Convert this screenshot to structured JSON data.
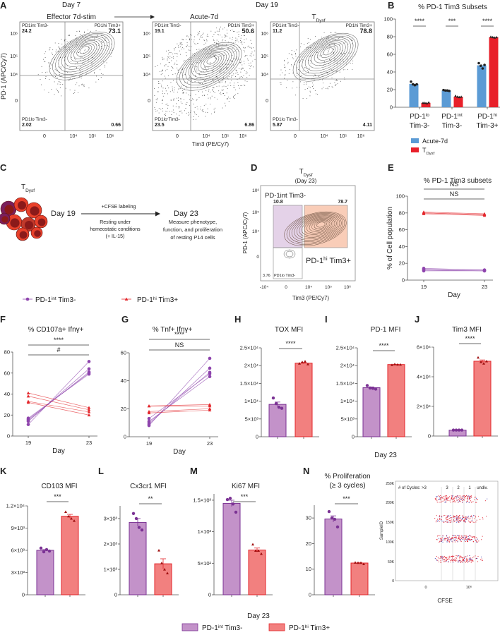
{
  "colors": {
    "acute": "#5b9bd5",
    "tdysf": "#e8202a",
    "int_fill": "#c392c9",
    "int_stroke": "#7b3294",
    "hi_fill": "#f2807f",
    "hi_stroke": "#e3262b",
    "int_gate": "#e4d2e8",
    "hi_gate": "#f9cdb8",
    "sig_purple": "#8e44ad",
    "sig_red": "#e8202a"
  },
  "panel_a": {
    "letter": "A",
    "day7": "Day 7",
    "day19": "Day 19",
    "effector_label": "Effector 7d-stim",
    "acute_label": "Acute-7d",
    "tdysf_label": "T{_Dysf}",
    "x_axis_label": "Tim3 (PE/Cy7)",
    "y_axis_label": "PD-1 (APC/Cy7)",
    "x_ticks": [
      "0",
      "10⁴",
      "10⁵",
      "10⁶"
    ],
    "y_ticks": [
      "10⁶",
      "10⁵",
      "10⁴",
      "0"
    ],
    "plots": [
      {
        "tl_label": "PD1int Tim3-",
        "tl": "24.2",
        "tr_label": "PD1hi Tim3+",
        "tr": "73.1",
        "bl_label": "PD1lo Tim3-",
        "bl": "2.02",
        "br": "0.66"
      },
      {
        "tl_label": "PD1int Tim3-",
        "tl": "19.1",
        "tr_label": "PD1hi Tim3+",
        "tr": "50.6",
        "bl_label": "PD1lo Tim3-",
        "bl": "23.5",
        "br": "6.86"
      },
      {
        "tl_label": "PD1int Tim3-",
        "tl": "11.2",
        "tr_label": "PD1hi Tim3+",
        "tr": "78.8",
        "bl_label": "PD1lo Tim3-",
        "bl": "5.87",
        "br": "4.11"
      }
    ]
  },
  "panel_c": {
    "letter": "C",
    "population": "T{_Dysf}",
    "start": "Day 19",
    "arrow_top": "+CFSE labeling",
    "arrow_bottom": [
      "Resting under",
      "homeostatic conditions",
      "(+ IL-15)"
    ],
    "end": "Day 23",
    "end_desc": [
      "Measure phenotype,",
      "function, and proliferation",
      "of resting P14 cells"
    ]
  },
  "panel_d": {
    "letter": "D",
    "title": "T{_Dysf}",
    "subtitle": "(Day 23)",
    "int_gate_label": "PD-1int Tim3-",
    "int_value": "10.8",
    "hi_gate_label": "PD-1{^hi} Tim3+",
    "hi_value": "78.7",
    "lo_value": "3.76",
    "lo_label": "PD1lo Tim3-",
    "x_axis_label": "Tim3 (PE/Cy7)",
    "y_axis_label": "PD-1 (APC/Cy7)",
    "x_ticks": [
      "-10⁴",
      "0",
      "10⁴",
      "10⁵",
      "10⁶"
    ],
    "y_ticks": [
      "10⁶",
      "10⁵",
      "10⁴",
      "0"
    ]
  },
  "legend_lines": {
    "int": "PD-1{^int} Tim3-",
    "hi": "PD-1{^hi} Tim3+"
  },
  "day23_mid_label": "Day 23",
  "day23_bottom_label": "Day 23",
  "legend_bars": {
    "int": "PD-1{^int} Tim3-",
    "hi": "PD-1{^hi} Tim3+"
  },
  "panel_n_cfse": {
    "header": [
      "# of Cycles: >3",
      "3",
      "2",
      "1",
      "undiv."
    ],
    "y_label": "SampleID",
    "x_label": "CFSE",
    "y_ticks": [
      "250K",
      "200K",
      "150K",
      "100K",
      "50K",
      "0"
    ],
    "x_ticks": [
      "0",
      "10⁶"
    ]
  },
  "chart_data": [
    {
      "id": "B",
      "letter": "B",
      "type": "bar",
      "title": "% PD-1 Tim3 Subsets",
      "categories": [
        [
          "PD-1{^lo}",
          "Tim-3-"
        ],
        [
          "PD-1{^int}",
          "Tim-3-"
        ],
        [
          "PD-1{^hi}",
          "Tim-3+"
        ]
      ],
      "ylim": [
        0,
        100
      ],
      "yticks": [
        0,
        20,
        40,
        60,
        80,
        100
      ],
      "ytick_labels": [
        "0",
        "20",
        "40",
        "60",
        "80",
        "100"
      ],
      "series": [
        {
          "name": "Acute-7d",
          "values": [
            26.5,
            19,
            47.5
          ],
          "points": [
            [
              29,
              26,
              25,
              26
            ],
            [
              19.5,
              19,
              19,
              18.5
            ],
            [
              50,
              47,
              44,
              48
            ]
          ]
        },
        {
          "name": "T{_Dysf}",
          "values": [
            5,
            12,
            79.5
          ],
          "points": [
            [
              5,
              5,
              4.5,
              5.5
            ],
            [
              13,
              12,
              11.5,
              12
            ],
            [
              80,
              79.5,
              79,
              79.5
            ]
          ]
        }
      ],
      "significance": [
        "****",
        "***",
        "****"
      ],
      "legend": "bottom"
    },
    {
      "id": "E",
      "letter": "E",
      "type": "line",
      "title": "% PD-1 Tim3 subsets",
      "xlabel": "Day",
      "ylabel": "% of Cell population",
      "x": [
        19,
        23
      ],
      "ylim": [
        0,
        100
      ],
      "yticks": [
        0,
        20,
        40,
        60,
        80,
        100
      ],
      "ytick_labels": [
        "0",
        "20",
        "40",
        "60",
        "80",
        "100"
      ],
      "series": [
        {
          "name": "PD-1{^int} Tim3-",
          "pairs": [
            [
              12,
              11
            ],
            [
              13,
              12
            ],
            [
              11,
              11
            ],
            [
              14,
              12
            ]
          ]
        },
        {
          "name": "PD-1{^hi} Tim3+",
          "pairs": [
            [
              80,
              78
            ],
            [
              81,
              79
            ],
            [
              79,
              77
            ],
            [
              80,
              78
            ]
          ]
        }
      ],
      "significance": [
        {
          "label": "NS",
          "series": 0
        },
        {
          "label": "NS",
          "series": 1
        }
      ]
    },
    {
      "id": "F",
      "letter": "F",
      "type": "line",
      "title": "% CD107a+ Ifnγ+",
      "xlabel": "Day",
      "ylabel": "",
      "x": [
        19,
        23
      ],
      "ylim": [
        0,
        80
      ],
      "yticks": [
        0,
        20,
        40,
        60,
        80
      ],
      "ytick_labels": [
        "0",
        "20",
        "40",
        "60",
        "80"
      ],
      "series": [
        {
          "name": "PD-1{^int} Tim3-",
          "pairs": [
            [
              11,
              71
            ],
            [
              14,
              64
            ],
            [
              15,
              61
            ],
            [
              16,
              60
            ],
            [
              17,
              59
            ]
          ]
        },
        {
          "name": "PD-1{^hi} Tim3+",
          "pairs": [
            [
              41,
              27
            ],
            [
              38,
              25
            ],
            [
              33,
              23
            ],
            [
              32,
              20
            ]
          ]
        }
      ],
      "significance": [
        {
          "label": "****",
          "series": 0
        },
        {
          "label": "#",
          "series": 1
        }
      ]
    },
    {
      "id": "G",
      "letter": "G",
      "type": "line",
      "title": "% Tnf+ Ifnγ+",
      "xlabel": "Day",
      "ylabel": "",
      "x": [
        19,
        23
      ],
      "ylim": [
        0,
        60
      ],
      "yticks": [
        0,
        20,
        40,
        60
      ],
      "ytick_labels": [
        "0",
        "20",
        "40",
        "60"
      ],
      "series": [
        {
          "name": "PD-1{^int} Tim3-",
          "pairs": [
            [
              8,
              56
            ],
            [
              9,
              49
            ],
            [
              10,
              46
            ],
            [
              11,
              43
            ],
            [
              13,
              45
            ]
          ]
        },
        {
          "name": "PD-1{^hi} Tim3+",
          "pairs": [
            [
              22,
              23
            ],
            [
              22,
              22
            ],
            [
              18,
              20
            ],
            [
              17,
              19
            ]
          ]
        }
      ],
      "significance": [
        {
          "label": "****",
          "series": 0
        },
        {
          "label": "NS",
          "series": 1
        }
      ]
    },
    {
      "id": "H",
      "letter": "H",
      "type": "bar",
      "title": "TOX MFI",
      "ylim": [
        0,
        25000
      ],
      "yticks": [
        0,
        5000,
        10000,
        15000,
        20000,
        25000
      ],
      "ytick_labels": [
        "0",
        "5×10³",
        "1×10⁴",
        "1.5×10⁴",
        "2×10⁴",
        "2.5×10⁴"
      ],
      "values": [
        9100,
        20700
      ],
      "points": [
        [
          10900,
          9300,
          8300,
          8000
        ],
        [
          20600,
          21000,
          21200,
          20400
        ]
      ],
      "significance": "****"
    },
    {
      "id": "I",
      "letter": "I",
      "type": "bar",
      "title": "PD-1 MFI",
      "ylim": [
        0,
        25000
      ],
      "yticks": [
        0,
        5000,
        10000,
        15000,
        20000,
        25000
      ],
      "ytick_labels": [
        "0",
        "5×10³",
        "1×10⁴",
        "1.5×10⁴",
        "2×10⁴",
        "2.5×10⁴"
      ],
      "values": [
        13800,
        20300
      ],
      "points": [
        [
          14400,
          13700,
          13600,
          13400
        ],
        [
          20200,
          20400,
          20300,
          20300
        ]
      ],
      "significance": "****"
    },
    {
      "id": "J",
      "letter": "J",
      "type": "bar",
      "title": "Tim3 MFI",
      "ylim": [
        0,
        60000
      ],
      "yticks": [
        0,
        20000,
        40000,
        60000
      ],
      "ytick_labels": [
        "0",
        "2×10⁴",
        "4×10⁴",
        "6×10⁴"
      ],
      "values": [
        4000,
        50500
      ],
      "points": [
        [
          4000,
          4000,
          4000,
          4000
        ],
        [
          53000,
          50000,
          49000,
          50500
        ]
      ],
      "significance": "****"
    },
    {
      "id": "K",
      "letter": "K",
      "type": "bar",
      "title": "CD103 MFI",
      "ylim": [
        0,
        12000
      ],
      "yticks": [
        0,
        3000,
        6000,
        9000,
        12000
      ],
      "ytick_labels": [
        "0",
        "3×10³",
        "6×10³",
        "9×10³",
        "1.2×10⁴"
      ],
      "values": [
        6000,
        10600
      ],
      "points": [
        [
          6300,
          5800,
          6100,
          5900
        ],
        [
          11200,
          10600,
          10300,
          10000
        ]
      ],
      "significance": "***"
    },
    {
      "id": "L",
      "letter": "L",
      "type": "bar",
      "title": "Cx3cr1 MFI",
      "ylim": [
        0,
        3500
      ],
      "yticks": [
        0,
        1000,
        2000,
        3000
      ],
      "ytick_labels": [
        "0",
        "1×10³",
        "2×10³",
        "3×10³"
      ],
      "values": [
        2850,
        1220
      ],
      "points": [
        [
          3200,
          3000,
          2650,
          2550
        ],
        [
          1750,
          1250,
          1000,
          850
        ]
      ],
      "significance": "**"
    },
    {
      "id": "M",
      "letter": "M",
      "type": "bar",
      "title": "Ki67 MFI",
      "ylim": [
        0,
        1600
      ],
      "yticks": [
        0,
        500,
        1000,
        1500
      ],
      "ytick_labels": [
        "0",
        "5×10²",
        "1×10³",
        "1.5×10³"
      ],
      "values": [
        1450,
        710
      ],
      "points": [
        [
          1510,
          1530,
          1440,
          1310
        ],
        [
          800,
          700,
          700,
          650
        ]
      ],
      "significance": "***"
    },
    {
      "id": "N",
      "letter": "N",
      "type": "bar",
      "title": [
        "% Proliferation",
        "(≥ 3 cycles)"
      ],
      "ylim": [
        0,
        35
      ],
      "yticks": [
        0,
        10,
        20,
        30
      ],
      "ytick_labels": [
        "0",
        "10",
        "20",
        "30"
      ],
      "values": [
        29.6,
        12.4
      ],
      "points": [
        [
          32.5,
          30,
          29.5,
          26.5
        ],
        [
          12.6,
          12.5,
          12.5,
          12
        ]
      ],
      "significance": "***"
    }
  ]
}
